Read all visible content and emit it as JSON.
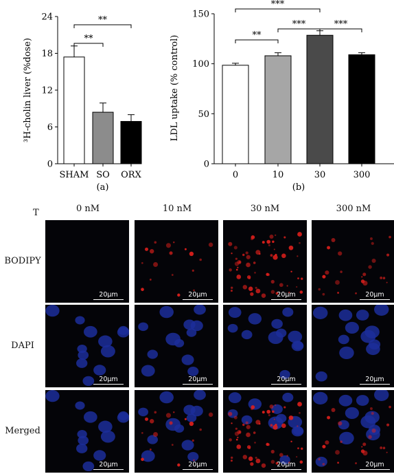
{
  "chart_data": [
    {
      "id": "a",
      "type": "bar",
      "panel_label": "(a)",
      "ylabel": "³H-cholin liver (%dose)",
      "ylim": [
        0,
        24
      ],
      "yticks": [
        "0",
        "6",
        "12",
        "18",
        "24"
      ],
      "categories": [
        "SHAM",
        "SO",
        "ORX"
      ],
      "values": [
        17.4,
        8.4,
        6.9
      ],
      "errors": [
        1.8,
        1.5,
        1.1
      ],
      "colors": [
        "#ffffff",
        "#8c8c8c",
        "#000000"
      ],
      "significance": [
        {
          "from": 0,
          "to": 1,
          "label": "**"
        },
        {
          "from": 0,
          "to": 2,
          "label": "**"
        }
      ]
    },
    {
      "id": "b",
      "type": "bar",
      "panel_label": "(b)",
      "ylabel": "LDL uptake (% control)",
      "ylim": [
        0,
        150
      ],
      "yticks": [
        "0",
        "50",
        "100",
        "150"
      ],
      "categories": [
        "0",
        "10",
        "30",
        "300"
      ],
      "values": [
        98.5,
        108,
        128.5,
        109
      ],
      "errors": [
        2,
        3,
        4.5,
        2
      ],
      "colors": [
        "#ffffff",
        "#a6a6a6",
        "#4a4a4a",
        "#000000"
      ],
      "significance": [
        {
          "from": 0,
          "to": 1,
          "label": "**"
        },
        {
          "from": 1,
          "to": 2,
          "label": "***"
        },
        {
          "from": 2,
          "to": 3,
          "label": "***"
        },
        {
          "from": 0,
          "to": 2,
          "label": "***"
        }
      ]
    }
  ],
  "micrograph": {
    "corner_label": "T",
    "columns": [
      "0 nM",
      "10 nM",
      "30 nM",
      "300 nM"
    ],
    "rows": [
      "BODIPY",
      "DAPI",
      "Merged"
    ],
    "scale_bar": "20μm",
    "stain_colors": {
      "bodipy": "#e0201c",
      "dapi": "#1c2e9a",
      "background": "#040408"
    },
    "bodipy_intensity": [
      0.0,
      0.3,
      1.0,
      0.4
    ]
  }
}
